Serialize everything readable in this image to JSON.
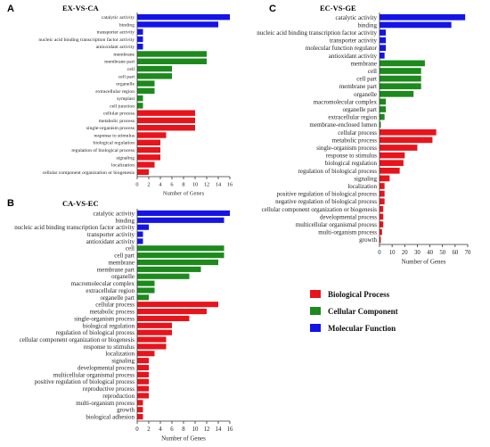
{
  "colors": {
    "biological": "#e8141c",
    "cellular": "#1c8a1c",
    "molecular": "#1414e8"
  },
  "legend": {
    "placement": "right-middle",
    "items": [
      {
        "label": "Biological Process",
        "color": "#e8141c"
      },
      {
        "label": "Cellular Component",
        "color": "#1c8a1c"
      },
      {
        "label": "Molecular Function",
        "color": "#1414e8"
      }
    ]
  },
  "chart_data": [
    {
      "panel": "A",
      "type": "bar",
      "orientation": "horizontal",
      "title": "EX-VS-CA",
      "xlabel": "Number of Genes",
      "xlim": [
        0,
        16
      ],
      "xticks": [
        0,
        2,
        4,
        6,
        8,
        10,
        12,
        14,
        16
      ],
      "categories": [
        "catalytic activity",
        "binding",
        "transporter activity",
        "nucleic acid binding transcription factor activity",
        "antioxidant activity",
        "membrane",
        "membrane part",
        "cell",
        "cell part",
        "organelle",
        "extracellular region",
        "symplast",
        "cell junction",
        "cellular process",
        "metabolic process",
        "single-organism process",
        "response to stimulus",
        "biological regulation",
        "regulation of biological process",
        "signaling",
        "localization",
        "cellular component organization or biogenesis"
      ],
      "values": [
        16,
        14,
        1,
        1,
        1,
        12,
        12,
        6,
        6,
        3,
        3,
        1,
        1,
        10,
        10,
        10,
        5,
        4,
        4,
        4,
        3,
        2
      ],
      "groups": [
        "molecular",
        "molecular",
        "molecular",
        "molecular",
        "molecular",
        "cellular",
        "cellular",
        "cellular",
        "cellular",
        "cellular",
        "cellular",
        "cellular",
        "cellular",
        "biological",
        "biological",
        "biological",
        "biological",
        "biological",
        "biological",
        "biological",
        "biological",
        "biological"
      ]
    },
    {
      "panel": "B",
      "type": "bar",
      "orientation": "horizontal",
      "title": "CA-VS-EC",
      "xlabel": "Number of Genes",
      "xlim": [
        0,
        16
      ],
      "xticks": [
        0,
        2,
        4,
        6,
        8,
        10,
        12,
        14,
        16
      ],
      "categories": [
        "catalytic activity",
        "binding",
        "nucleic acid binding transcription factor activity",
        "transporter activity",
        "antioxidant activity",
        "cell",
        "cell part",
        "membrane",
        "membrane part",
        "organelle",
        "macromolecular complex",
        "extracellular region",
        "organelle part",
        "cellular process",
        "metabolic process",
        "single-organism process",
        "biological regulation",
        "regulation of biological process",
        "cellular component organization or biogenesis",
        "response to stimulus",
        "localization",
        "signaling",
        "developmental process",
        "multicellular organismal process",
        "positive regulation of biological process",
        "reproductive process",
        "reproduction",
        "multi-organism process",
        "growth",
        "biological adhesion"
      ],
      "values": [
        16,
        15,
        2,
        1,
        1,
        15,
        15,
        14,
        11,
        9,
        3,
        3,
        2,
        14,
        12,
        9,
        6,
        6,
        5,
        5,
        3,
        2,
        2,
        2,
        2,
        2,
        2,
        1,
        1,
        1
      ],
      "groups": [
        "molecular",
        "molecular",
        "molecular",
        "molecular",
        "molecular",
        "cellular",
        "cellular",
        "cellular",
        "cellular",
        "cellular",
        "cellular",
        "cellular",
        "cellular",
        "biological",
        "biological",
        "biological",
        "biological",
        "biological",
        "biological",
        "biological",
        "biological",
        "biological",
        "biological",
        "biological",
        "biological",
        "biological",
        "biological",
        "biological",
        "biological",
        "biological"
      ]
    },
    {
      "panel": "C",
      "type": "bar",
      "orientation": "horizontal",
      "title": "EC-VS-GE",
      "xlabel": "Number of Genes",
      "xlim": [
        0,
        70
      ],
      "xticks": [
        0,
        10,
        20,
        30,
        40,
        50,
        60,
        70
      ],
      "categories": [
        "catalytic activity",
        "binding",
        "nucleic acid binding transcription factor activity",
        "transporter activity",
        "molecular function regulator",
        "antioxidant activity",
        "membrane",
        "cell",
        "cell part",
        "membrane part",
        "organelle",
        "macromolecular complex",
        "organelle part",
        "extracellular region",
        "membrane-enclosed lumen",
        "cellular process",
        "metabolic process",
        "single-organism process",
        "response to stimulus",
        "biological regulation",
        "regulation of biological process",
        "signaling",
        "localization",
        "positive regulation of biological process",
        "negative regulation of biological process",
        "cellular component organization or biogenesis",
        "developmental process",
        "multicellular organismal process",
        "multi-organism process",
        "growth"
      ],
      "values": [
        68,
        57,
        5,
        5,
        5,
        4,
        36,
        33,
        33,
        33,
        27,
        5,
        5,
        4,
        1,
        45,
        42,
        30,
        20,
        19,
        16,
        8,
        4,
        4,
        4,
        3,
        3,
        3,
        2,
        1
      ],
      "groups": [
        "molecular",
        "molecular",
        "molecular",
        "molecular",
        "molecular",
        "molecular",
        "cellular",
        "cellular",
        "cellular",
        "cellular",
        "cellular",
        "cellular",
        "cellular",
        "cellular",
        "cellular",
        "biological",
        "biological",
        "biological",
        "biological",
        "biological",
        "biological",
        "biological",
        "biological",
        "biological",
        "biological",
        "biological",
        "biological",
        "biological",
        "biological",
        "biological"
      ]
    }
  ]
}
